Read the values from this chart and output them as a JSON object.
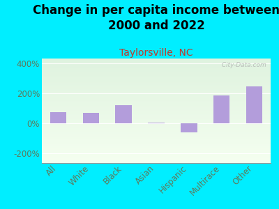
{
  "title": "Change in per capita income between\n2000 and 2022",
  "subtitle": "Taylorsville, NC",
  "categories": [
    "All",
    "White",
    "Black",
    "Asian",
    "Hispanic",
    "Multirace",
    "Other"
  ],
  "values": [
    75,
    68,
    120,
    2,
    -60,
    185,
    245
  ],
  "bar_color": "#b39ddb",
  "background_outer": "#00eeff",
  "title_fontsize": 12,
  "subtitle_fontsize": 10,
  "subtitle_color": "#c0392b",
  "tick_label_color": "#5d7a5d",
  "ylim": [
    -267,
    433
  ],
  "yticks": [
    -200,
    0,
    200,
    400
  ],
  "ytick_labels": [
    "-200%",
    "0%",
    "200%",
    "400%"
  ],
  "watermark": "  City-Data.com"
}
